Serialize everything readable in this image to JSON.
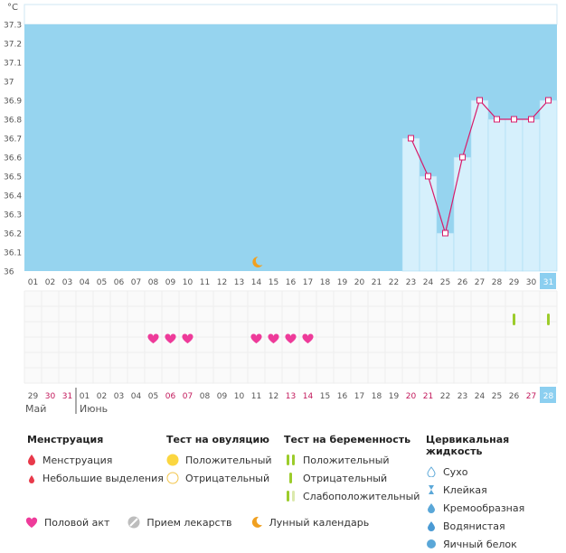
{
  "chart_data": {
    "type": "line",
    "unit_label": "°C",
    "y_ticks": [
      "36",
      "36.1",
      "36.2",
      "36.3",
      "36.4",
      "36.5",
      "36.6",
      "36.7",
      "36.8",
      "36.9",
      "37",
      "37.1",
      "37.2",
      "37.3"
    ],
    "ylim": [
      36.0,
      37.3
    ],
    "x_ticks": [
      "01",
      "02",
      "03",
      "04",
      "05",
      "06",
      "07",
      "08",
      "09",
      "10",
      "11",
      "12",
      "13",
      "14",
      "15",
      "16",
      "17",
      "18",
      "19",
      "20",
      "21",
      "22",
      "23",
      "24",
      "25",
      "26",
      "27",
      "28",
      "29",
      "30",
      "31"
    ],
    "series": [
      {
        "x": [
          "23",
          "24",
          "25",
          "26",
          "27",
          "28",
          "29",
          "30",
          "31"
        ],
        "values": [
          36.7,
          36.5,
          36.2,
          36.6,
          36.9,
          36.8,
          36.8,
          36.8,
          36.9
        ]
      }
    ],
    "highlighted_day": "31",
    "moon_day": "14",
    "intercourse_days": [
      "08",
      "09",
      "10",
      "14",
      "15",
      "16",
      "17"
    ],
    "pregnancy_test_days": [
      "29",
      "31"
    ],
    "cycle_days": [
      "29",
      "30",
      "31",
      "01",
      "02",
      "03",
      "04",
      "05",
      "06",
      "07",
      "08",
      "09",
      "10",
      "11",
      "12",
      "13",
      "14",
      "15",
      "16",
      "17",
      "18",
      "19",
      "20",
      "21",
      "22",
      "23",
      "24",
      "25",
      "26",
      "27",
      "28"
    ],
    "cycle_red_days": [
      "30",
      "31",
      "06",
      "07",
      "13",
      "14",
      "20",
      "21",
      "27"
    ],
    "cycle_highlight_index": 30,
    "month_may": "Май",
    "month_june": "Июнь",
    "colors": {
      "band": "#96d4ef",
      "bar": "#d6f0fc",
      "line": "#d81b6a",
      "heart": "#ee3b9a",
      "red": "#c2185b",
      "highlight": "#8ccff0"
    }
  },
  "legend": {
    "menstruation": {
      "title": "Менструация",
      "items": [
        "Менструация",
        "Небольшие выделения"
      ]
    },
    "ovulation": {
      "title": "Тест на овуляцию",
      "items": [
        "Положительный",
        "Отрицательный"
      ]
    },
    "pregnancy": {
      "title": "Тест на беременность",
      "items": [
        "Положительный",
        "Отрицательный",
        "Слабоположительный"
      ]
    },
    "cervical": {
      "title": "Цервикальная жидкость",
      "items": [
        "Сухо",
        "Клейкая",
        "Кремообразная",
        "Водянистая",
        "Яичный белок"
      ]
    },
    "bottom": [
      "Половой акт",
      "Прием лекарств",
      "Лунный календарь"
    ]
  }
}
